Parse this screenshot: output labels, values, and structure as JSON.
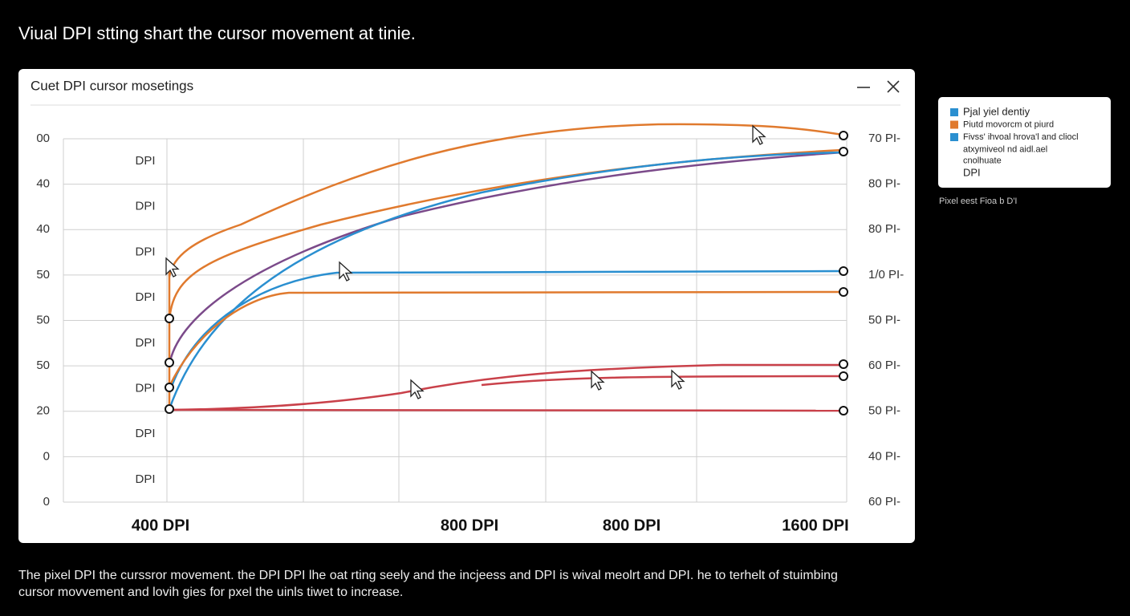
{
  "page_title": "Viual DPI stting shart the cursor movement at tinie.",
  "window": {
    "title": "Cuet DPI cursor mosetings"
  },
  "left_axis_labels": [
    "00",
    "40",
    "40",
    "50",
    "50",
    "50",
    "20",
    "0",
    "0"
  ],
  "dpi_labels": [
    "DPI",
    "DPI",
    "DPI",
    "DPI",
    "DPI",
    "DPI",
    "DPI",
    "DPI"
  ],
  "right_axis_labels": [
    "70 PI-",
    "80 PI-",
    "80 PI-",
    "1/0 PI-",
    "50 PI-",
    "60 PI-",
    "50 PI-",
    "40 PI-",
    "60 PI-"
  ],
  "bottom_labels": [
    "400 DPI",
    "800 DPI",
    "800 DPI",
    "1600 DPI"
  ],
  "legend": {
    "items": [
      {
        "lines": [
          "Pjal yiel dentiy"
        ],
        "color": "#2a8fd0"
      },
      {
        "lines": [
          "Piutd movorcm ot piurd"
        ],
        "color": "#e07a2e"
      },
      {
        "lines": [
          "Fivss' ihvoal hrova'l and cliocl",
          "atxymiveol nd aidl.ael",
          "cnolhuate"
        ],
        "color": "#2a8fd0"
      }
    ],
    "footer": "DPI"
  },
  "legend_caption": "Pixel eest Fioa b D'I",
  "caption": [
    "The pixel DPI the curssror movement. the DPI DPI lhe oat rting seely and the incjeess and DPI is wival meolrt and DPI. he to terhelt of stuimbing",
    "cursor movvement and lovih gies for pxel the uinls tiwet to increase."
  ]
}
